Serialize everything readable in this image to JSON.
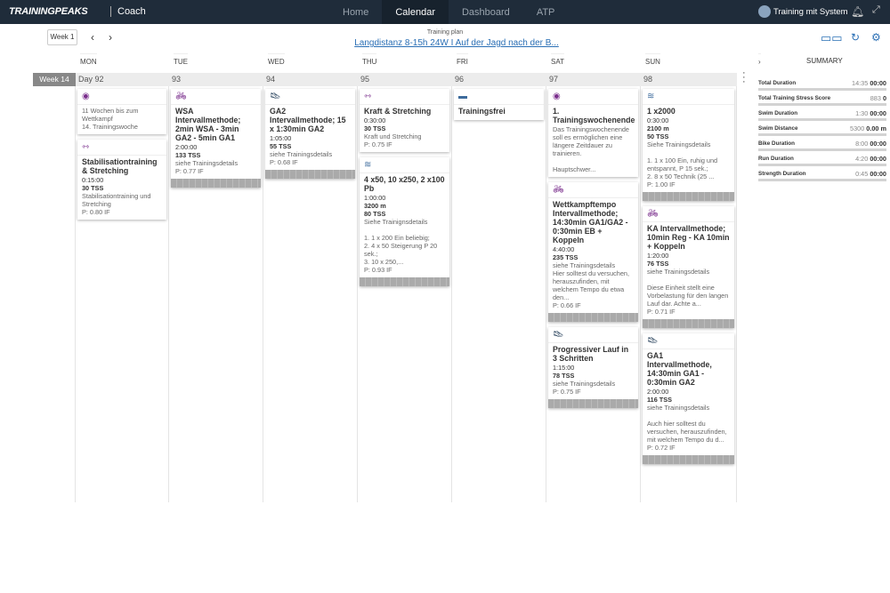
{
  "nav": {
    "logo": "TRAININGPEAKS",
    "product": "Coach",
    "links": [
      "Home",
      "Calendar",
      "Dashboard",
      "ATP"
    ],
    "active": "Calendar",
    "user": "Training mit System"
  },
  "toolbar": {
    "week_button": "Week 1",
    "plan_label": "Training plan",
    "plan_name": "Langdistanz 8-15h 24W I Auf der Jagd nach der B..."
  },
  "days": [
    "MON",
    "TUE",
    "WED",
    "THU",
    "FRI",
    "SAT",
    "SUN"
  ],
  "week": {
    "label": "Week 14",
    "day_numbers": [
      "Day 92",
      "93",
      "94",
      "95",
      "96",
      "97",
      "98"
    ]
  },
  "summary": {
    "title": "SUMMARY",
    "rows": [
      {
        "label": "Total Duration",
        "planned": "14:35",
        "completed": "00:00"
      },
      {
        "label": "Total Training Stress Score",
        "planned": "883",
        "completed": "0"
      },
      {
        "label": "Swim Duration",
        "planned": "1:30",
        "completed": "00:00"
      },
      {
        "label": "Swim Distance",
        "planned": "5300",
        "completed": "0.00 m"
      },
      {
        "label": "Bike Duration",
        "planned": "8:00",
        "completed": "00:00"
      },
      {
        "label": "Run Duration",
        "planned": "4:20",
        "completed": "00:00"
      },
      {
        "label": "Strength Duration",
        "planned": "0:45",
        "completed": "00:00"
      }
    ]
  },
  "columns": [
    [
      {
        "icon": "event",
        "lines": [
          "11 Wochen bis zum Wettkampf",
          "14. Trainingswoche"
        ]
      },
      {
        "icon": "strength",
        "title": "Stabilisationtraining & Stretching",
        "duration": "0:15:00",
        "tss": "30 TSS",
        "desc": "Stabilisationtraining und Stretching",
        "if": "P: 0.80 IF"
      }
    ],
    [
      {
        "icon": "bike",
        "title": "WSA Intervallmethode; 2min WSA - 3min GA2 - 5min GA1",
        "duration": "2:00:00",
        "tss": "133 TSS",
        "desc": "siehe Trainingsdetails",
        "if": "P: 0.77 IF",
        "graph": true
      }
    ],
    [
      {
        "icon": "run",
        "title": "GA2 Intervallmethode; 15 x 1:30min GA2",
        "duration": "1:05:00",
        "tss": "55 TSS",
        "desc": "siehe Trainingsdetails",
        "if": "P: 0.68 IF",
        "graph": true
      }
    ],
    [
      {
        "icon": "strength",
        "title": "Kraft & Stretching",
        "duration": "0:30:00",
        "tss": "30 TSS",
        "desc": "Kraft und Stretching",
        "if": "P: 0.75 IF"
      },
      {
        "icon": "swim",
        "title": "4 x50, 10 x250, 2 x100 Pb",
        "duration": "1:00:00",
        "distance": "3200 m",
        "tss": "80 TSS",
        "desc": "Siehe Trainignsdetails\n\n1. 1 x 200 Ein beliebig;\n2. 4 x 50 Steigerung P 20 sek.;\n3. 10 x 250,...",
        "if": "P: 0.93 IF",
        "graph": true
      }
    ],
    [
      {
        "icon": "rest",
        "title": "Trainingsfrei"
      }
    ],
    [
      {
        "icon": "event",
        "title": "1. Trainingswochenende",
        "desc": "Das Trainingswochenende soll es ermöglichen eine längere Zeitdauer zu trainieren.\n\nHauptschwer..."
      },
      {
        "icon": "bike",
        "title": "Wettkampftempo Intervallmethode; 14:30min GA1/GA2 - 0:30min EB + Koppeln",
        "duration": "4:40:00",
        "tss": "235 TSS",
        "desc": "siehe Trainingsdetails\nHier solltest du versuchen, herauszufinden, mit welchem Tempo du etwa den...",
        "if": "P: 0.66 IF",
        "graph": true
      },
      {
        "icon": "run",
        "title": "Progressiver Lauf in 3 Schritten",
        "duration": "1:15:00",
        "tss": "78 TSS",
        "desc": "siehe Trainingsdetails",
        "if": "P: 0.75 IF",
        "graph": true
      }
    ],
    [
      {
        "icon": "swim",
        "title": "1 x2000",
        "duration": "0:30:00",
        "distance": "2100 m",
        "tss": "50 TSS",
        "desc": "Siehe Trainingsdetails\n\n1. 1 x 100 Ein, ruhig und entspannt, P 15 sek.;\n2. 8 x 50 Technik (25 ...",
        "if": "P: 1.00 IF",
        "graph": true
      },
      {
        "icon": "bike",
        "title": "KA Intervallmethode; 10min Reg - KA 10min + Koppeln",
        "duration": "1:20:00",
        "tss": "76 TSS",
        "desc": "siehe Trainingsdetails\n\nDiese Einheit stellt eine Vorbelastung für den langen Lauf dar. Achte a...",
        "if": "P: 0.71 IF",
        "graph": true
      },
      {
        "icon": "run",
        "title": "GA1 Intervallmethode, 14:30min GA1 - 0:30min GA2",
        "duration": "2:00:00",
        "tss": "116 TSS",
        "desc": "siehe Trainingsdetails\n\nAuch hier solltest du versuchen, herauszufinden, mit welchem Tempo du d...",
        "if": "P: 0.72 IF",
        "graph": true
      }
    ]
  ]
}
